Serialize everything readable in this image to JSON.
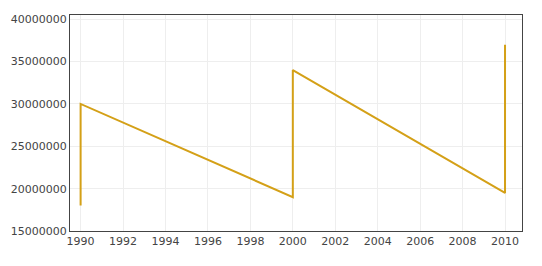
{
  "chart_data": {
    "type": "line",
    "x": [
      1990,
      1990,
      2000,
      2000,
      2010,
      2010
    ],
    "values": [
      18000000,
      30000000,
      19000000,
      34000000,
      19500000,
      37000000
    ],
    "color": "#D4A017",
    "xlim": [
      1989.5,
      2010.8
    ],
    "ylim": [
      15000000,
      40500000
    ],
    "xticks": [
      1990,
      1992,
      1994,
      1996,
      1998,
      2000,
      2002,
      2004,
      2006,
      2008,
      2010
    ],
    "yticks": [
      15000000,
      20000000,
      25000000,
      30000000,
      35000000,
      40000000
    ],
    "grid": true
  }
}
